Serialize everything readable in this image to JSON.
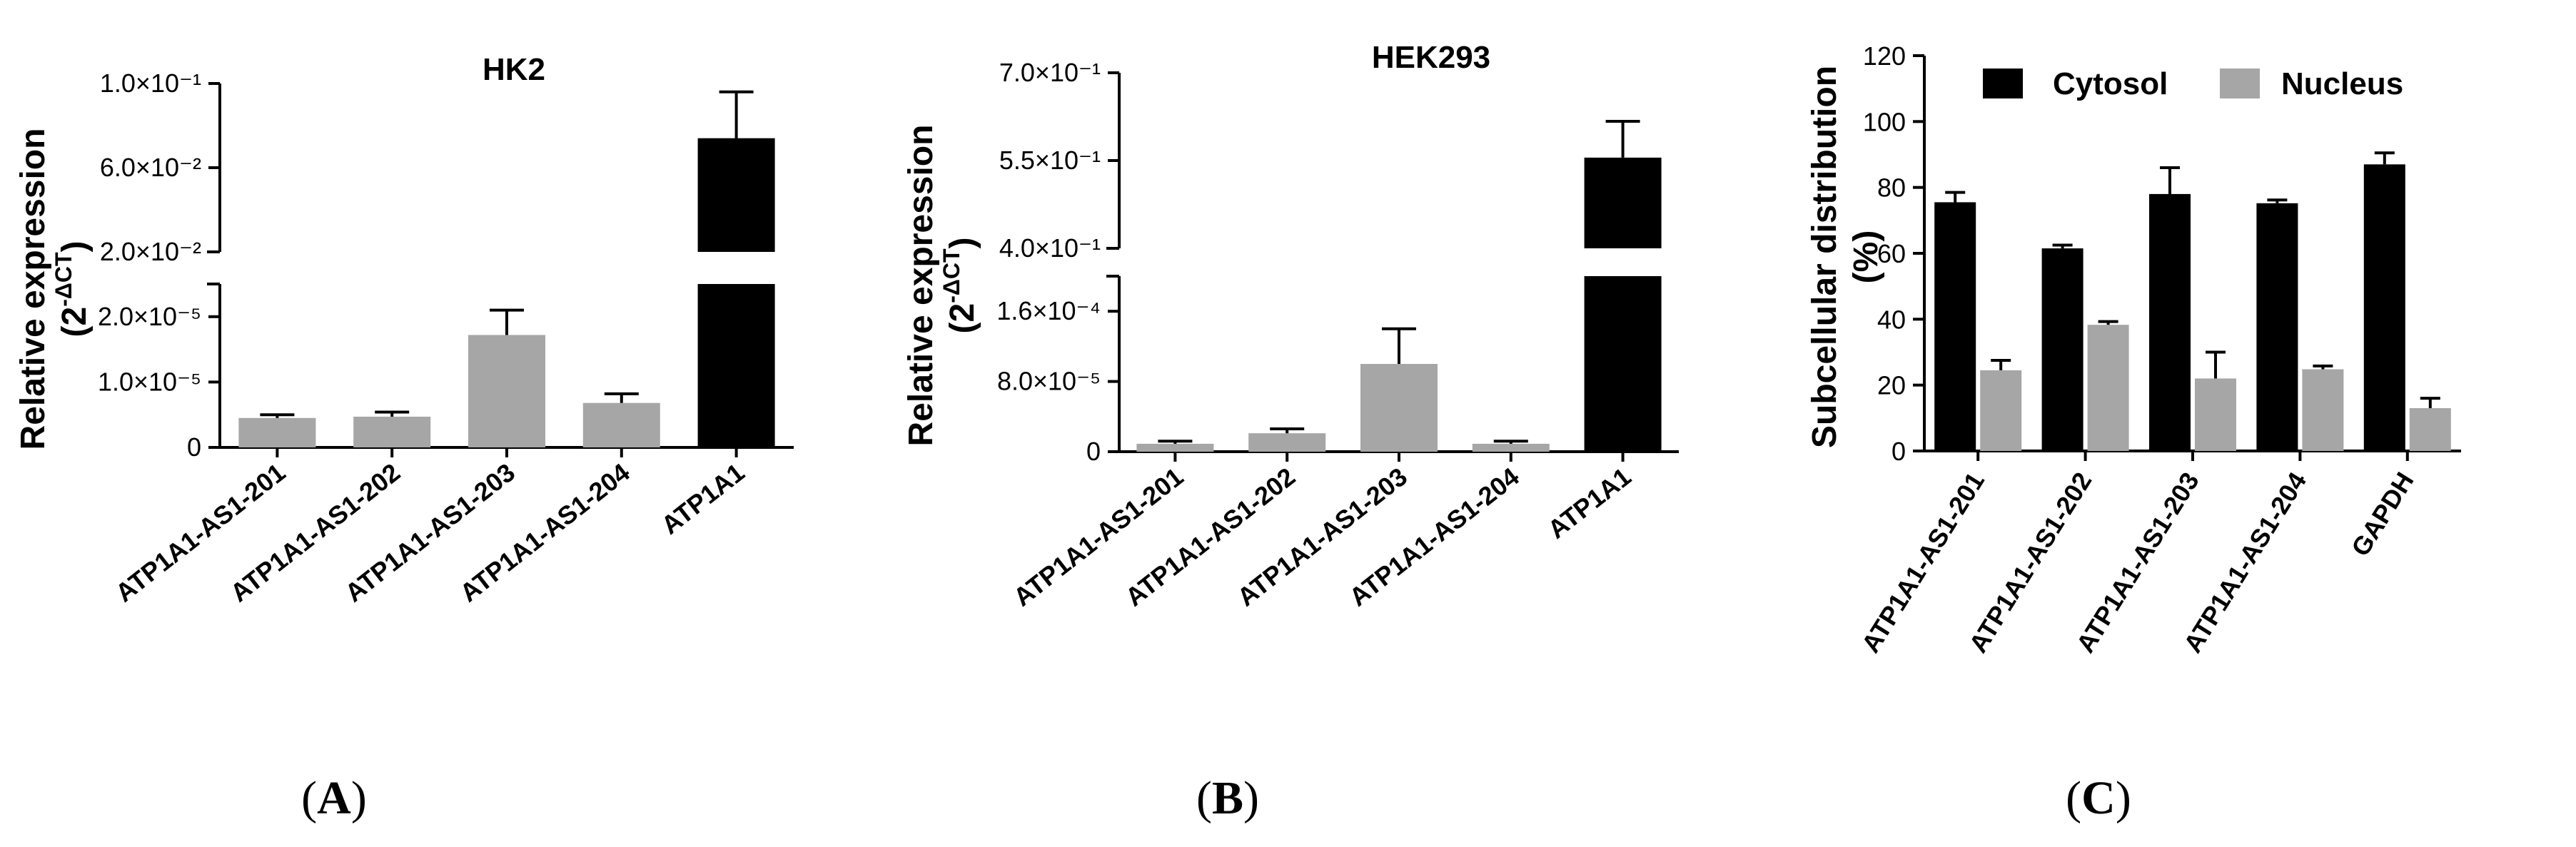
{
  "colors": {
    "gray": "#a6a6a6",
    "black": "#000000"
  },
  "chart_data": [
    {
      "type": "bar",
      "panel_label": "A",
      "title": "HK2",
      "ylabel": "Relative expression",
      "ylabel_formula": {
        "base": "(2",
        "exp": "-ΔCT",
        "close": ")"
      },
      "axis_break": true,
      "lower_segment": {
        "ylim": [
          0,
          2.5e-05
        ],
        "ticks": [
          0,
          1e-05,
          2e-05
        ],
        "tick_labels": [
          "0",
          "1.0×10⁻⁵",
          "2.0×10⁻⁵"
        ]
      },
      "upper_segment": {
        "ylim": [
          0.02,
          0.1
        ],
        "ticks": [
          0.02,
          0.06,
          0.1
        ],
        "tick_labels": [
          "2.0×10⁻²",
          "6.0×10⁻²",
          "1.0×10⁻¹"
        ]
      },
      "categories": [
        "ATP1A1-AS1-201",
        "ATP1A1-AS1-202",
        "ATP1A1-AS1-203",
        "ATP1A1-AS1-204",
        "ATP1A1"
      ],
      "values": [
        4.5e-06,
        4.7e-06,
        1.72e-05,
        6.8e-06,
        0.074
      ],
      "errors": [
        5e-07,
        7e-07,
        3.8e-06,
        1.4e-06,
        0.022
      ],
      "bar_colors": [
        "gray",
        "gray",
        "gray",
        "gray",
        "black"
      ]
    },
    {
      "type": "bar",
      "panel_label": "B",
      "title": "HEK293",
      "ylabel": "Relative expression",
      "ylabel_formula": {
        "base": "(2",
        "exp": "-ΔCT",
        "close": ")"
      },
      "axis_break": true,
      "lower_segment": {
        "ylim": [
          0,
          0.0002
        ],
        "ticks": [
          0,
          8e-05,
          0.00016
        ],
        "tick_labels": [
          "0",
          "8.0×10⁻⁵",
          "1.6×10⁻⁴"
        ]
      },
      "upper_segment": {
        "ylim": [
          0.4,
          0.7
        ],
        "ticks": [
          0.4,
          0.55,
          0.7
        ],
        "tick_labels": [
          "4.0×10⁻¹",
          "5.5×10⁻¹",
          "7.0×10⁻¹"
        ]
      },
      "categories": [
        "ATP1A1-AS1-201",
        "ATP1A1-AS1-202",
        "ATP1A1-AS1-203",
        "ATP1A1-AS1-204",
        "ATP1A1"
      ],
      "values": [
        9e-06,
        2.1e-05,
        0.0001,
        9e-06,
        0.555
      ],
      "errors": [
        3e-06,
        5e-06,
        4e-05,
        3e-06,
        0.062
      ],
      "bar_colors": [
        "gray",
        "gray",
        "gray",
        "gray",
        "black"
      ]
    },
    {
      "type": "bar",
      "panel_label": "C",
      "title": "",
      "ylabel": "Subcellular distribution",
      "ylabel2": "(%)",
      "ylim": [
        0,
        120
      ],
      "ticks": [
        0,
        20,
        40,
        60,
        80,
        100,
        120
      ],
      "categories": [
        "ATP1A1-AS1-201",
        "ATP1A1-AS1-202",
        "ATP1A1-AS1-203",
        "ATP1A1-AS1-204",
        "GAPDH"
      ],
      "series": [
        {
          "name": "Cytosol",
          "color": "black",
          "values": [
            75.5,
            61.5,
            78,
            75.2,
            87
          ],
          "errors": [
            3,
            1,
            8,
            1,
            3.5
          ]
        },
        {
          "name": "Nucleus",
          "color": "gray",
          "values": [
            24.5,
            38.3,
            22,
            24.8,
            13
          ],
          "errors": [
            3,
            1,
            8,
            1,
            3
          ]
        }
      ],
      "legend": "top"
    }
  ]
}
